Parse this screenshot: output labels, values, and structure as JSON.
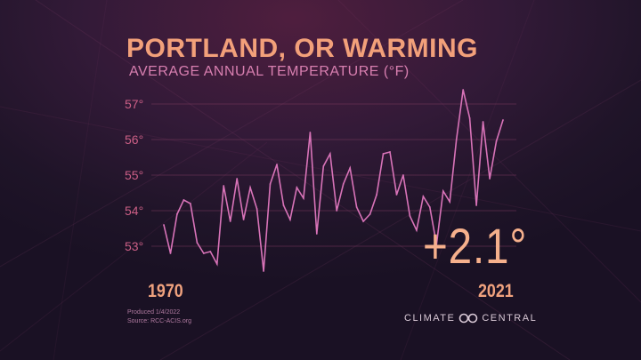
{
  "title": "PORTLAND, OR WARMING",
  "subtitle": "AVERAGE  ANNUAL TEMPERATURE (°F)",
  "start_label": "1970",
  "end_label": "2021",
  "change_label": "+2.1°",
  "produced": "Produced 1/4/2022",
  "source": "Source: RCC-ACIS.org",
  "logo": {
    "word1": "CLIMATE",
    "word2": "CENTRAL",
    "icon": "infinity-loop-icon"
  },
  "colors": {
    "title": "#f2a07a",
    "subtitle": "#d87fb0",
    "line": "#d873b8",
    "tick": "#cc5f86",
    "gridline": "#7e3a60",
    "change": "#f6b08c"
  },
  "chart_data": {
    "type": "line",
    "ylabel": "",
    "ylim": [
      52.5,
      57.4
    ],
    "ytick_labels": [
      "53°",
      "54°",
      "55°",
      "56°",
      "57°"
    ],
    "yticks": [
      53,
      54,
      55,
      56,
      57
    ],
    "x": [
      1970,
      1971,
      1972,
      1973,
      1974,
      1975,
      1976,
      1977,
      1978,
      1979,
      1980,
      1981,
      1982,
      1983,
      1984,
      1985,
      1986,
      1987,
      1988,
      1989,
      1990,
      1991,
      1992,
      1993,
      1994,
      1995,
      1996,
      1997,
      1998,
      1999,
      2000,
      2001,
      2002,
      2003,
      2004,
      2005,
      2006,
      2007,
      2008,
      2009,
      2010,
      2011,
      2012,
      2013,
      2014,
      2015,
      2016,
      2017,
      2018,
      2019,
      2020,
      2021
    ],
    "series": [
      {
        "values": [
          53.6,
          52.8,
          53.9,
          54.3,
          54.2,
          53.1,
          52.8,
          52.85,
          52.5,
          54.7,
          53.7,
          54.9,
          53.75,
          54.65,
          54.05,
          52.3,
          54.75,
          55.3,
          54.15,
          53.75,
          54.65,
          54.35,
          56.2,
          53.35,
          55.25,
          55.6,
          54.0,
          54.75,
          55.2,
          54.1,
          53.7,
          53.9,
          54.45,
          55.6,
          55.65,
          54.45,
          55.0,
          53.85,
          53.45,
          54.4,
          54.1,
          53.05,
          54.55,
          54.25,
          56.0,
          57.4,
          56.6,
          54.15,
          56.5,
          54.9,
          55.95,
          56.55
        ]
      }
    ]
  }
}
